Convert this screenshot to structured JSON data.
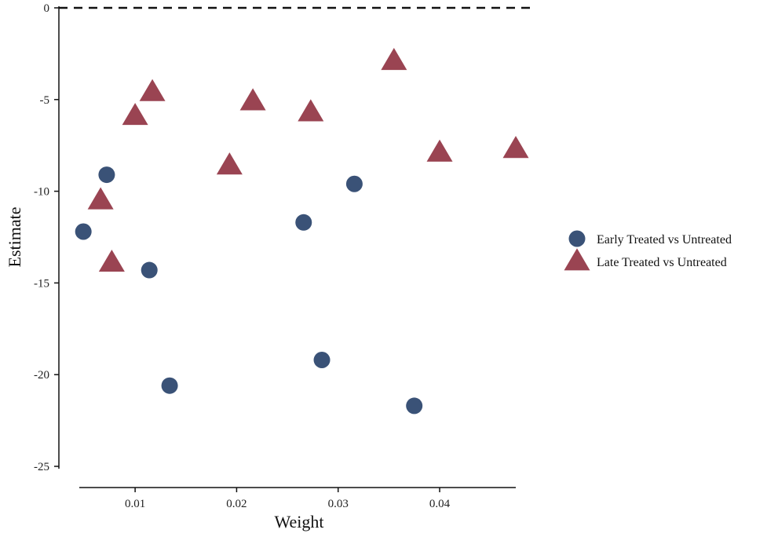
{
  "chart_data": {
    "type": "scatter",
    "xlabel": "Weight",
    "ylabel": "Estimate",
    "xlim": [
      0.0045,
      0.0475
    ],
    "ylim": [
      -25,
      0
    ],
    "x_ticks": [
      0.01,
      0.02,
      0.03,
      0.04
    ],
    "x_tick_labels": [
      "0.01",
      "0.02",
      "0.03",
      "0.04"
    ],
    "y_ticks": [
      0,
      -5,
      -10,
      -15,
      -20,
      -25
    ],
    "y_tick_labels": [
      "0",
      "-5",
      "-10",
      "-15",
      "-20",
      "-25"
    ],
    "reference_line": {
      "y": 0,
      "style": "dashed"
    },
    "grid": false,
    "legend_position": "right",
    "series": [
      {
        "name": "Early Treated vs Untreated",
        "marker": "circle",
        "color": "#3a5277",
        "points": [
          {
            "x": 0.0049,
            "y": -12.2
          },
          {
            "x": 0.0072,
            "y": -9.1
          },
          {
            "x": 0.0114,
            "y": -14.3
          },
          {
            "x": 0.0134,
            "y": -20.6
          },
          {
            "x": 0.0266,
            "y": -11.7
          },
          {
            "x": 0.0284,
            "y": -19.2
          },
          {
            "x": 0.0316,
            "y": -9.6
          },
          {
            "x": 0.0375,
            "y": -21.7
          }
        ]
      },
      {
        "name": "Late Treated vs Untreated",
        "marker": "triangle",
        "color": "#9a4452",
        "points": [
          {
            "x": 0.0066,
            "y": -10.5
          },
          {
            "x": 0.0077,
            "y": -13.9
          },
          {
            "x": 0.01,
            "y": -5.9
          },
          {
            "x": 0.0117,
            "y": -4.6
          },
          {
            "x": 0.0193,
            "y": -8.6
          },
          {
            "x": 0.0216,
            "y": -5.1
          },
          {
            "x": 0.0273,
            "y": -5.7
          },
          {
            "x": 0.0355,
            "y": -2.9
          },
          {
            "x": 0.04,
            "y": -7.9
          },
          {
            "x": 0.0475,
            "y": -7.7
          }
        ]
      }
    ]
  }
}
